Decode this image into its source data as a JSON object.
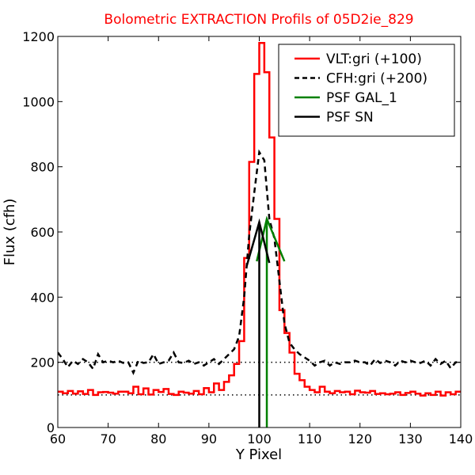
{
  "chart_data": {
    "type": "line",
    "title": "Bolometric EXTRACTION Profils of 05D2ie_829",
    "title_color": "#ff0000",
    "xlabel": "Y Pixel",
    "ylabel": "Flux (cfh)",
    "xlim": [
      60,
      140
    ],
    "ylim": [
      0,
      1200
    ],
    "xticks": [
      60,
      70,
      80,
      90,
      100,
      110,
      120,
      130,
      140
    ],
    "yticks": [
      0,
      200,
      400,
      600,
      800,
      1000,
      1200
    ],
    "grid": false,
    "legend_position": "top-right",
    "reference_lines": [
      {
        "y": 100,
        "style": "dotted",
        "color": "#000000"
      },
      {
        "y": 200,
        "style": "dotted",
        "color": "#000000"
      }
    ],
    "series": [
      {
        "name": "VLT:gri (+100)",
        "color": "#ff0000",
        "style": "steps",
        "x": [
          60,
          61,
          62,
          63,
          64,
          65,
          66,
          67,
          68,
          69,
          70,
          71,
          72,
          73,
          74,
          75,
          76,
          77,
          78,
          79,
          80,
          81,
          82,
          83,
          84,
          85,
          86,
          87,
          88,
          89,
          90,
          91,
          92,
          93,
          94,
          95,
          96,
          97,
          98,
          99,
          100,
          101,
          102,
          103,
          104,
          105,
          106,
          107,
          108,
          109,
          110,
          111,
          112,
          113,
          114,
          115,
          116,
          117,
          118,
          119,
          120,
          121,
          122,
          123,
          124,
          125,
          126,
          127,
          128,
          129,
          130,
          131,
          132,
          133,
          134,
          135,
          136,
          137,
          138,
          139
        ],
        "y": [
          110,
          105,
          112,
          104,
          111,
          103,
          115,
          100,
          108,
          109,
          107,
          104,
          110,
          110,
          105,
          125,
          102,
          120,
          101,
          115,
          109,
          118,
          103,
          100,
          110,
          107,
          104,
          112,
          102,
          121,
          108,
          135,
          115,
          140,
          160,
          195,
          265,
          520,
          815,
          1085,
          1180,
          1090,
          890,
          640,
          360,
          290,
          230,
          165,
          145,
          125,
          115,
          108,
          125,
          110,
          105,
          112,
          108,
          110,
          102,
          113,
          108,
          107,
          112,
          103,
          105,
          102,
          104,
          108,
          100,
          106,
          110,
          104,
          98,
          105,
          100,
          110,
          98,
          108,
          102,
          110
        ]
      },
      {
        "name": "CFH:gri (+200)",
        "color": "#000000",
        "style": "dashed",
        "x": [
          60,
          61,
          62,
          63,
          64,
          65,
          66,
          67,
          68,
          69,
          70,
          71,
          72,
          73,
          74,
          75,
          76,
          77,
          78,
          79,
          80,
          81,
          82,
          83,
          84,
          85,
          86,
          87,
          88,
          89,
          90,
          91,
          92,
          93,
          94,
          95,
          96,
          97,
          98,
          99,
          100,
          101,
          102,
          103,
          104,
          105,
          106,
          107,
          108,
          109,
          110,
          111,
          112,
          113,
          114,
          115,
          116,
          117,
          118,
          119,
          120,
          121,
          122,
          123,
          124,
          125,
          126,
          127,
          128,
          129,
          130,
          131,
          132,
          133,
          134,
          135,
          136,
          137,
          138,
          139,
          140
        ],
        "y": [
          230,
          210,
          185,
          205,
          195,
          210,
          200,
          180,
          225,
          200,
          205,
          200,
          205,
          198,
          200,
          168,
          205,
          198,
          200,
          225,
          195,
          200,
          205,
          230,
          200,
          198,
          205,
          195,
          200,
          190,
          200,
          210,
          195,
          210,
          225,
          240,
          280,
          400,
          590,
          720,
          845,
          820,
          640,
          580,
          450,
          320,
          260,
          240,
          225,
          215,
          205,
          190,
          200,
          205,
          190,
          200,
          195,
          200,
          200,
          205,
          200,
          200,
          190,
          210,
          198,
          205,
          200,
          190,
          205,
          200,
          205,
          200,
          198,
          205,
          190,
          210,
          195,
          205,
          182,
          200,
          200
        ]
      },
      {
        "name": "PSF GAL_1",
        "color": "#008000",
        "style": "solid",
        "x": [
          99.5,
          101.5,
          105
        ],
        "y": [
          510,
          640,
          510
        ],
        "vertical": {
          "x": 101.5,
          "y0": 0,
          "y1": 640
        }
      },
      {
        "name": "PSF SN",
        "color": "#000000",
        "style": "solid",
        "x": [
          97.5,
          100,
          102
        ],
        "y": [
          495,
          630,
          505
        ],
        "vertical": {
          "x": 100,
          "y0": 0,
          "y1": 630
        }
      }
    ]
  }
}
